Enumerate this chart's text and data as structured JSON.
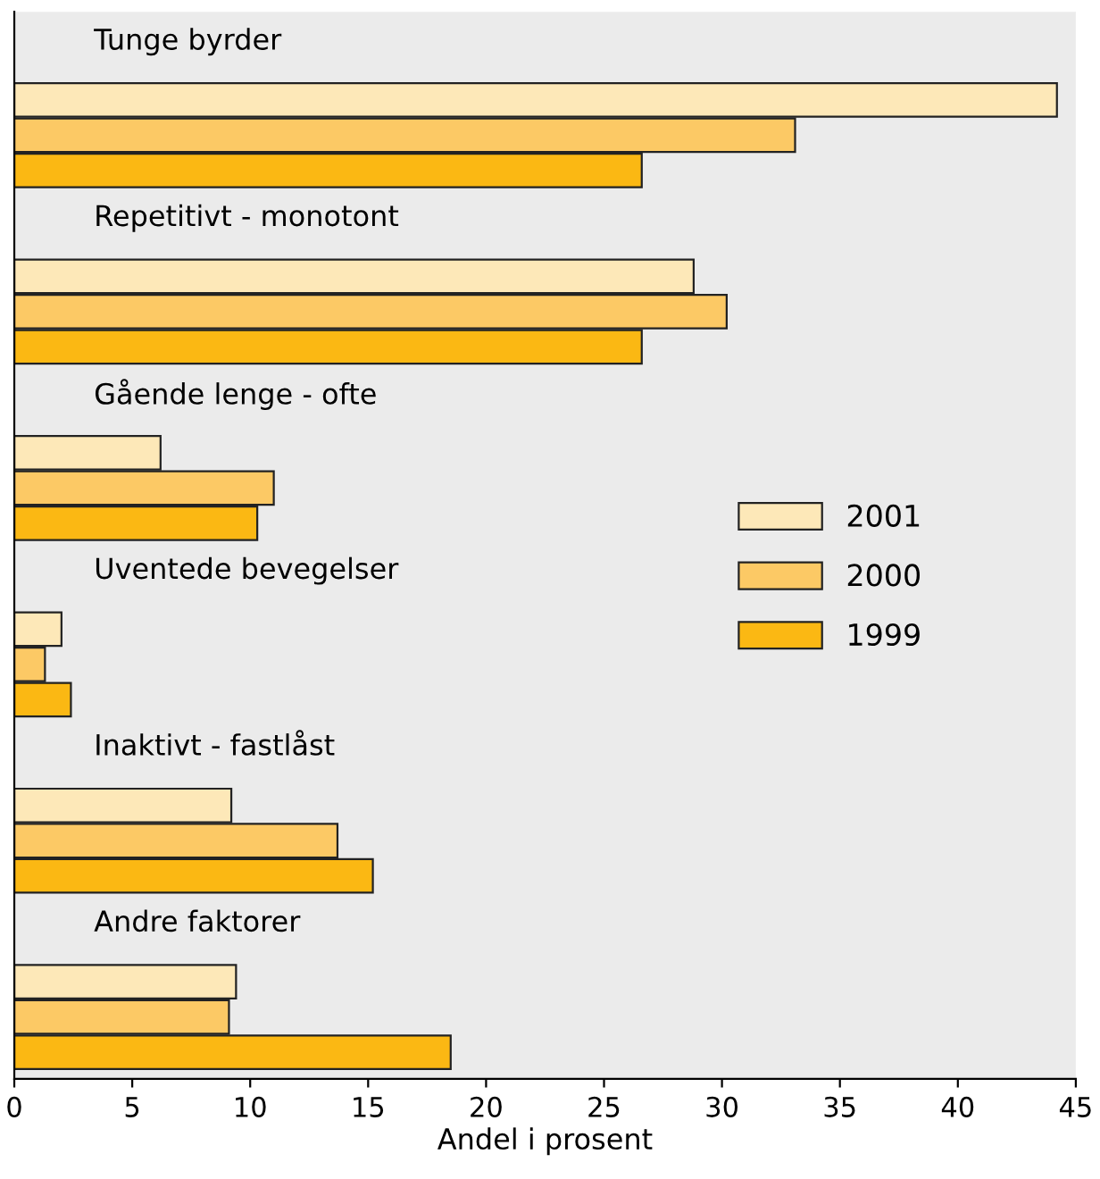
{
  "chart_data": {
    "type": "bar",
    "orientation": "horizontal",
    "xlabel": "Andel i prosent",
    "categories": [
      "Tunge byrder",
      "Repetitivt - monotont",
      "Gående lenge - ofte",
      "Uventede bevegelser",
      "Inaktivt - fastlåst",
      "Andre faktorer"
    ],
    "series": [
      {
        "name": "2001",
        "color": "#fde8b8",
        "values": [
          44.2,
          28.8,
          6.2,
          2.0,
          9.2,
          9.4
        ]
      },
      {
        "name": "2000",
        "color": "#fcc965",
        "values": [
          33.1,
          30.2,
          11.0,
          1.3,
          13.7,
          9.1
        ]
      },
      {
        "name": "1999",
        "color": "#fbb813",
        "values": [
          26.6,
          26.6,
          10.3,
          2.4,
          15.2,
          18.5
        ]
      }
    ],
    "xlim": [
      0,
      45
    ],
    "xticks": [
      0,
      5,
      10,
      15,
      20,
      25,
      30,
      35,
      40,
      45
    ],
    "grid": false,
    "legend": "right"
  }
}
